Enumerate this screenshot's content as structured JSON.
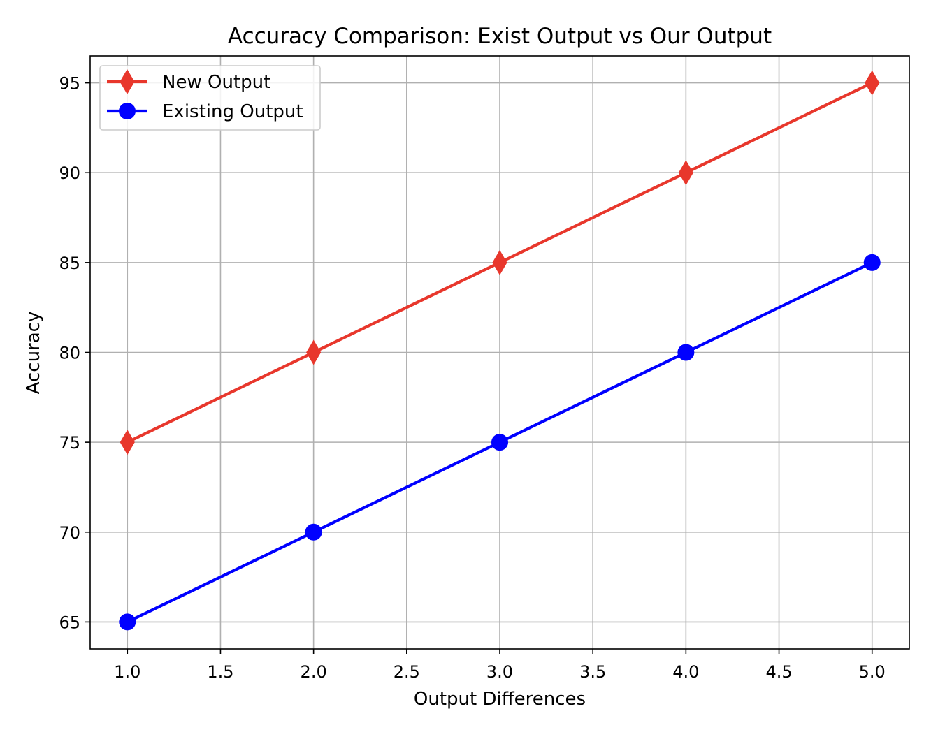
{
  "chart_data": {
    "type": "line",
    "title": "Accuracy Comparison: Exist Output vs Our Output",
    "xlabel": "Output Differences",
    "ylabel": "Accuracy",
    "xlim": [
      0.8,
      5.2
    ],
    "ylim": [
      63.5,
      96.5
    ],
    "xticks": [
      1.0,
      1.5,
      2.0,
      2.5,
      3.0,
      3.5,
      4.0,
      4.5,
      5.0
    ],
    "xtick_labels": [
      "1.0",
      "1.5",
      "2.0",
      "2.5",
      "3.0",
      "3.5",
      "4.0",
      "4.5",
      "5.0"
    ],
    "yticks": [
      65,
      70,
      75,
      80,
      85,
      90,
      95
    ],
    "ytick_labels": [
      "65",
      "70",
      "75",
      "80",
      "85",
      "90",
      "95"
    ],
    "grid": true,
    "legend_position": "top-left",
    "x": [
      1,
      2,
      3,
      4,
      5
    ],
    "series": [
      {
        "name": "New Output",
        "values": [
          75,
          80,
          85,
          90,
          95
        ],
        "color": "#e8372c",
        "marker": "diamond"
      },
      {
        "name": "Existing Output",
        "values": [
          65,
          70,
          75,
          80,
          85
        ],
        "color": "#0000ff",
        "marker": "circle"
      }
    ]
  }
}
